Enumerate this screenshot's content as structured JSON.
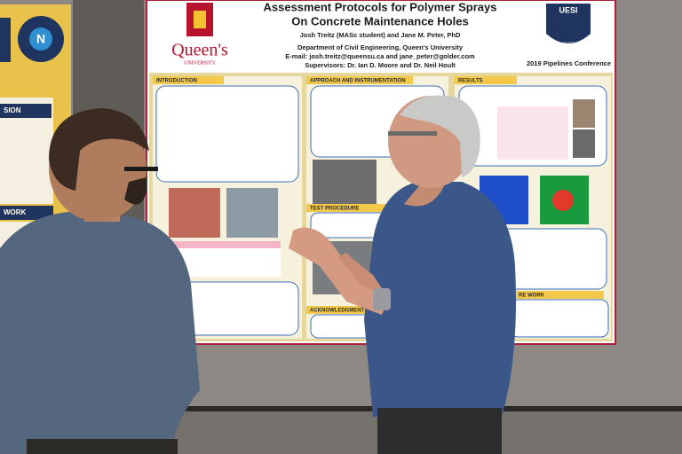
{
  "poster": {
    "title": [
      "Assessment Protocols for Polymer Sprays",
      "On Concrete Maintenance Holes"
    ],
    "authors": "Josh Treitz (MASc student) and Jane M. Peter, PhD",
    "department": "Department of Civil Engineering, Queen's University",
    "email": "E-mail: josh.treitz@queensu.ca and jane_peter@golder.com",
    "supervisors": "Supervisors: Dr. Ian D. Moore and Dr. Neil Hoult",
    "conference": "2019 Pipelines Conference",
    "logo_left": {
      "name": "Queen's",
      "sub": "UNIVERSITY"
    },
    "logo_right": {
      "name": "UESI",
      "sub": "ASCE"
    },
    "sections": [
      "INTRODUCTION",
      "APPROACH AND INSTRUMENTATION",
      "TEST PROCEDURE",
      "ACKNOWLEDGMENTS",
      "RESULTS",
      "RE WORK"
    ]
  },
  "left_poster": {
    "logo_letter": "N",
    "headings": [
      "SION",
      "WORK"
    ]
  }
}
